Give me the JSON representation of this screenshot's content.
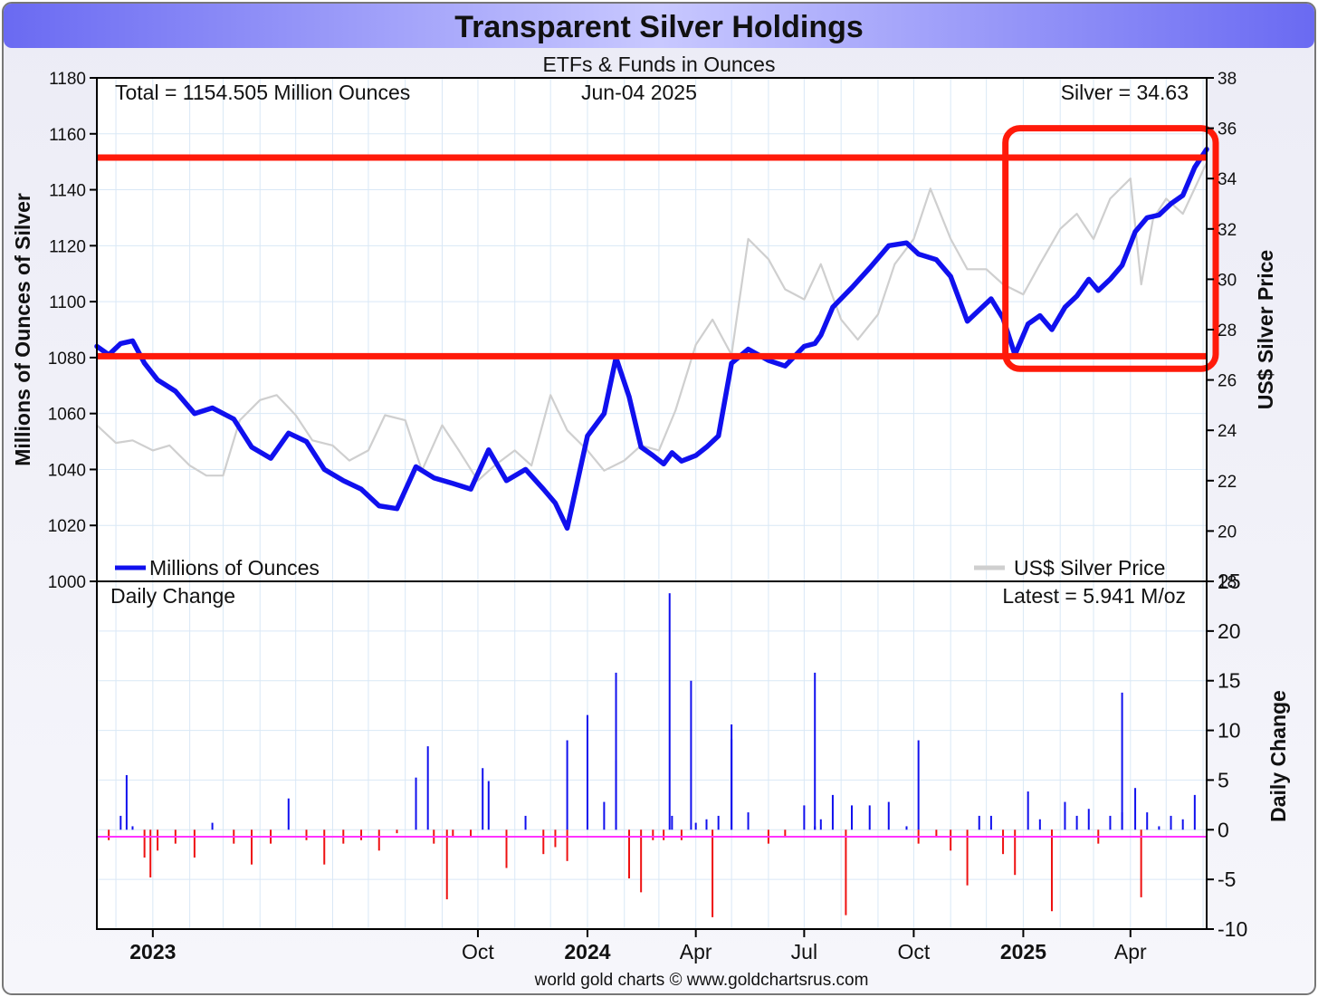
{
  "chart_data": {
    "type": "line",
    "title": "Transparent Silver Holdings",
    "subtitle": "ETFs & Funds in Ounces",
    "source": "world gold charts © www.goldchartsrus.com",
    "x_tick_labels": [
      {
        "label": "2023",
        "bold": true
      },
      {
        "label": "Oct",
        "bold": false
      },
      {
        "label": "2024",
        "bold": true
      },
      {
        "label": "Apr",
        "bold": false
      },
      {
        "label": "Jul",
        "bold": false
      },
      {
        "label": "Oct",
        "bold": false
      },
      {
        "label": "2025",
        "bold": true
      },
      {
        "label": "Apr",
        "bold": false
      }
    ],
    "x_range": [
      "2022-11-15",
      "2025-06-04"
    ],
    "x_tick_dates": [
      "2023-01-01",
      "2023-10-01",
      "2024-01-01",
      "2024-04-01",
      "2024-07-01",
      "2024-10-01",
      "2025-01-01",
      "2025-04-01"
    ],
    "top_panel": {
      "ylabel_left": "Millions of Ounces of Silver",
      "ylabel_right": "US$ Silver Price",
      "ylim_left": [
        1000,
        1180
      ],
      "ylim_right": [
        18,
        38
      ],
      "yticks_left": [
        1000,
        1020,
        1040,
        1060,
        1080,
        1100,
        1120,
        1140,
        1160,
        1180
      ],
      "yticks_right": [
        18,
        20,
        22,
        24,
        26,
        28,
        30,
        32,
        34,
        36,
        38
      ],
      "grid": true,
      "annotations": {
        "total": "Total = 1154.505 Million Ounces",
        "date": "Jun-04  2025",
        "silver": "Silver = 34.63"
      },
      "legend": {
        "holdings": "Millions of Ounces",
        "price": "US$ Silver Price",
        "placement": "bottom"
      },
      "series": [
        {
          "name": "Millions of Ounces",
          "axis": "left",
          "color": "#1010ee",
          "x": [
            "2022-11-15",
            "2022-11-25",
            "2022-12-05",
            "2022-12-15",
            "2022-12-25",
            "2023-01-05",
            "2023-01-20",
            "2023-02-05",
            "2023-02-20",
            "2023-03-10",
            "2023-03-25",
            "2023-04-10",
            "2023-04-25",
            "2023-05-10",
            "2023-05-25",
            "2023-06-10",
            "2023-06-25",
            "2023-07-10",
            "2023-07-25",
            "2023-08-10",
            "2023-08-25",
            "2023-09-10",
            "2023-09-25",
            "2023-10-10",
            "2023-10-25",
            "2023-11-10",
            "2023-11-25",
            "2023-12-05",
            "2023-12-15",
            "2024-01-01",
            "2024-01-15",
            "2024-01-25",
            "2024-02-05",
            "2024-02-15",
            "2024-02-25",
            "2024-03-05",
            "2024-03-12",
            "2024-03-20",
            "2024-04-01",
            "2024-04-10",
            "2024-04-20",
            "2024-05-01",
            "2024-05-15",
            "2024-06-01",
            "2024-06-15",
            "2024-07-01",
            "2024-07-10",
            "2024-07-15",
            "2024-07-25",
            "2024-08-10",
            "2024-08-25",
            "2024-09-10",
            "2024-09-25",
            "2024-10-05",
            "2024-10-20",
            "2024-11-01",
            "2024-11-15",
            "2024-11-25",
            "2024-12-05",
            "2024-12-15",
            "2024-12-25",
            "2025-01-05",
            "2025-01-15",
            "2025-01-25",
            "2025-02-05",
            "2025-02-15",
            "2025-02-25",
            "2025-03-05",
            "2025-03-15",
            "2025-03-25",
            "2025-04-05",
            "2025-04-15",
            "2025-04-25",
            "2025-05-05",
            "2025-05-15",
            "2025-05-25",
            "2025-06-04"
          ],
          "values": [
            1084,
            1081,
            1085,
            1086,
            1078,
            1072,
            1068,
            1060,
            1062,
            1058,
            1048,
            1044,
            1053,
            1050,
            1040,
            1036,
            1033,
            1027,
            1026,
            1041,
            1037,
            1035,
            1033,
            1047,
            1036,
            1040,
            1033,
            1028,
            1019,
            1052,
            1060,
            1080,
            1066,
            1048,
            1045,
            1042,
            1046,
            1043,
            1045,
            1048,
            1052,
            1078,
            1083,
            1079,
            1077,
            1084,
            1085,
            1088,
            1098,
            1105,
            1112,
            1120,
            1121,
            1117,
            1115,
            1109,
            1093,
            1097,
            1101,
            1094,
            1081,
            1092,
            1095,
            1090,
            1098,
            1102,
            1108,
            1104,
            1108,
            1113,
            1125,
            1130,
            1131,
            1135,
            1138,
            1148,
            1154.505
          ]
        },
        {
          "name": "US$ Silver Price",
          "axis": "right",
          "color": "#cccccc",
          "x": [
            "2022-11-15",
            "2022-12-01",
            "2022-12-15",
            "2023-01-01",
            "2023-01-15",
            "2023-02-01",
            "2023-02-15",
            "2023-03-01",
            "2023-03-15",
            "2023-04-01",
            "2023-04-15",
            "2023-05-01",
            "2023-05-15",
            "2023-06-01",
            "2023-06-15",
            "2023-07-01",
            "2023-07-15",
            "2023-08-01",
            "2023-08-15",
            "2023-09-01",
            "2023-09-15",
            "2023-10-01",
            "2023-10-15",
            "2023-11-01",
            "2023-11-15",
            "2023-12-01",
            "2023-12-15",
            "2024-01-01",
            "2024-01-15",
            "2024-02-01",
            "2024-02-15",
            "2024-03-01",
            "2024-03-15",
            "2024-04-01",
            "2024-04-15",
            "2024-05-01",
            "2024-05-15",
            "2024-06-01",
            "2024-06-15",
            "2024-07-01",
            "2024-07-15",
            "2024-08-01",
            "2024-08-15",
            "2024-09-01",
            "2024-09-15",
            "2024-10-01",
            "2024-10-15",
            "2024-11-01",
            "2024-11-15",
            "2024-12-01",
            "2024-12-15",
            "2025-01-01",
            "2025-01-15",
            "2025-02-01",
            "2025-02-15",
            "2025-03-01",
            "2025-03-15",
            "2025-04-01",
            "2025-04-10",
            "2025-04-20",
            "2025-05-01",
            "2025-05-15",
            "2025-06-04"
          ],
          "values": [
            24.2,
            23.5,
            23.6,
            23.2,
            23.4,
            22.6,
            22.2,
            22.2,
            24.4,
            25.2,
            25.4,
            24.6,
            23.6,
            23.4,
            22.8,
            23.2,
            24.6,
            24.4,
            22.4,
            24.2,
            23.2,
            22.0,
            22.6,
            23.2,
            22.6,
            25.4,
            24.0,
            23.2,
            22.4,
            22.8,
            23.4,
            23.2,
            24.8,
            27.4,
            28.4,
            27.0,
            31.6,
            30.8,
            29.6,
            29.2,
            30.6,
            28.4,
            27.6,
            28.6,
            30.6,
            31.6,
            33.6,
            31.6,
            30.4,
            30.4,
            29.8,
            29.4,
            30.6,
            32.0,
            32.6,
            31.6,
            33.2,
            34.0,
            29.8,
            32.4,
            33.2,
            32.6,
            34.63
          ]
        }
      ]
    },
    "bottom_panel": {
      "label": "Daily Change",
      "latest": "Latest = 5.941 M/oz",
      "ylabel_right": "Daily Change",
      "ylim": [
        -10,
        25
      ],
      "yticks": [
        -10,
        -5,
        0,
        5,
        10,
        15,
        20,
        25
      ],
      "zero_label_color": "#ff00ff",
      "positive_color": "#1010ee",
      "negative_color": "#ee1111",
      "notable_spikes": [
        {
          "x": "2022-12-10",
          "value": 5.5
        },
        {
          "x": "2022-12-30",
          "value": -4.8
        },
        {
          "x": "2023-08-20",
          "value": 8.4
        },
        {
          "x": "2023-09-05",
          "value": -7.0
        },
        {
          "x": "2023-10-05",
          "value": 6.2
        },
        {
          "x": "2023-12-15",
          "value": 9.0
        },
        {
          "x": "2024-01-25",
          "value": 15.8
        },
        {
          "x": "2024-03-10",
          "value": 23.8
        },
        {
          "x": "2024-03-28",
          "value": 15.0
        },
        {
          "x": "2024-04-15",
          "value": -8.8
        },
        {
          "x": "2024-05-01",
          "value": 10.6
        },
        {
          "x": "2024-07-10",
          "value": 15.8
        },
        {
          "x": "2024-08-05",
          "value": -8.6
        },
        {
          "x": "2024-10-05",
          "value": 9.0
        },
        {
          "x": "2025-01-25",
          "value": -8.2
        },
        {
          "x": "2025-03-25",
          "value": 13.8
        },
        {
          "x": "2025-04-10",
          "value": -6.8
        },
        {
          "x": "2025-06-04",
          "value": 5.941
        }
      ]
    },
    "highlights": {
      "upper_line_value": 1151.5,
      "lower_line_value": 1080.5,
      "box_from": "2024-12-17",
      "box_to": "2025-06-04",
      "box_range": [
        1076,
        1162
      ],
      "color": "#ff1a0a"
    }
  }
}
